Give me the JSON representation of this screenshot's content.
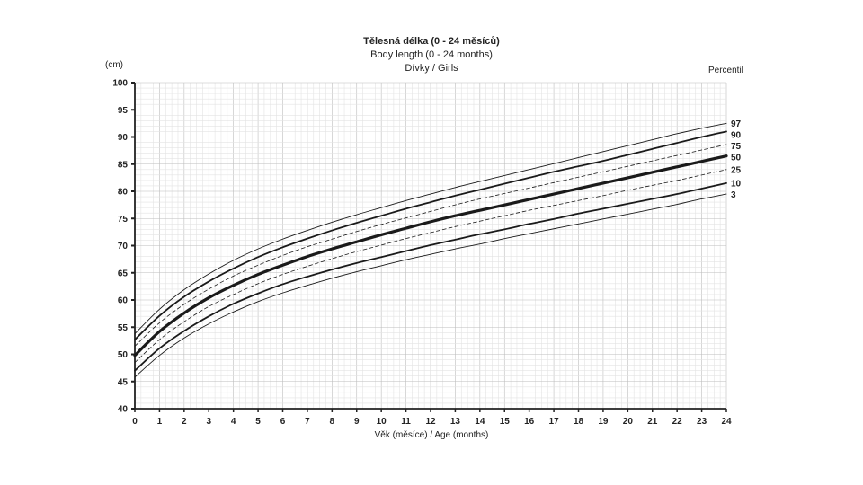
{
  "chart_data": {
    "type": "line",
    "title": "Tělesná délka (0 - 24 měsíců)",
    "subtitle": "Body length (0 - 24 months)",
    "subtitle2": "Dívky / Girls",
    "ylabel": "(cm)",
    "xlabel": "Věk (měsíce) / Age (months)",
    "legend_title": "Percentil",
    "xlim": [
      0,
      24
    ],
    "ylim": [
      40,
      100
    ],
    "x_ticks": [
      0,
      1,
      2,
      3,
      4,
      5,
      6,
      7,
      8,
      9,
      10,
      11,
      12,
      13,
      14,
      15,
      16,
      17,
      18,
      19,
      20,
      21,
      22,
      23,
      24
    ],
    "y_ticks": [
      40,
      45,
      50,
      55,
      60,
      65,
      70,
      75,
      80,
      85,
      90,
      95,
      100
    ],
    "grid": true,
    "legend_position": "right",
    "x": [
      0,
      1,
      2,
      3,
      4,
      5,
      6,
      7,
      8,
      9,
      10,
      11,
      12,
      13,
      14,
      15,
      16,
      17,
      18,
      19,
      20,
      21,
      22,
      23,
      24
    ],
    "series": [
      {
        "name": "97",
        "style": "thin",
        "values": [
          53.8,
          58.3,
          61.9,
          64.8,
          67.3,
          69.4,
          71.2,
          72.8,
          74.3,
          75.7,
          77.0,
          78.3,
          79.5,
          80.7,
          81.8,
          82.9,
          84.0,
          85.1,
          86.2,
          87.3,
          88.4,
          89.5,
          90.6,
          91.6,
          92.5
        ]
      },
      {
        "name": "90",
        "style": "thick",
        "values": [
          52.7,
          57.1,
          60.6,
          63.4,
          65.8,
          67.9,
          69.7,
          71.3,
          72.8,
          74.2,
          75.5,
          76.8,
          78.0,
          79.2,
          80.3,
          81.4,
          82.5,
          83.6,
          84.6,
          85.6,
          86.7,
          87.8,
          88.9,
          90.0,
          91.0
        ]
      },
      {
        "name": "75",
        "style": "dashed",
        "values": [
          51.5,
          55.8,
          59.2,
          62.0,
          64.4,
          66.4,
          68.2,
          69.8,
          71.2,
          72.6,
          73.9,
          75.1,
          76.3,
          77.5,
          78.6,
          79.6,
          80.6,
          81.6,
          82.6,
          83.6,
          84.6,
          85.6,
          86.6,
          87.6,
          88.6
        ]
      },
      {
        "name": "50",
        "style": "boldest",
        "values": [
          49.8,
          54.2,
          57.6,
          60.4,
          62.7,
          64.7,
          66.4,
          68.0,
          69.4,
          70.7,
          72.0,
          73.2,
          74.4,
          75.5,
          76.5,
          77.5,
          78.5,
          79.5,
          80.5,
          81.5,
          82.5,
          83.5,
          84.5,
          85.5,
          86.5
        ]
      },
      {
        "name": "25",
        "style": "dashed",
        "values": [
          48.5,
          52.7,
          56.0,
          58.8,
          61.0,
          63.0,
          64.7,
          66.2,
          67.6,
          68.9,
          70.1,
          71.3,
          72.4,
          73.5,
          74.5,
          75.5,
          76.5,
          77.4,
          78.3,
          79.2,
          80.2,
          81.1,
          82.0,
          83.0,
          84.0
        ]
      },
      {
        "name": "10",
        "style": "thick",
        "values": [
          47.0,
          51.1,
          54.3,
          57.0,
          59.3,
          61.2,
          62.9,
          64.3,
          65.6,
          66.8,
          67.9,
          69.0,
          70.1,
          71.1,
          72.1,
          73.0,
          74.0,
          74.9,
          75.9,
          76.8,
          77.7,
          78.6,
          79.5,
          80.5,
          81.5
        ]
      },
      {
        "name": "3",
        "style": "thin",
        "values": [
          45.8,
          49.8,
          53.0,
          55.6,
          57.8,
          59.7,
          61.3,
          62.7,
          64.0,
          65.2,
          66.3,
          67.4,
          68.4,
          69.4,
          70.3,
          71.3,
          72.2,
          73.1,
          74.0,
          74.9,
          75.8,
          76.7,
          77.6,
          78.6,
          79.5
        ]
      }
    ]
  }
}
